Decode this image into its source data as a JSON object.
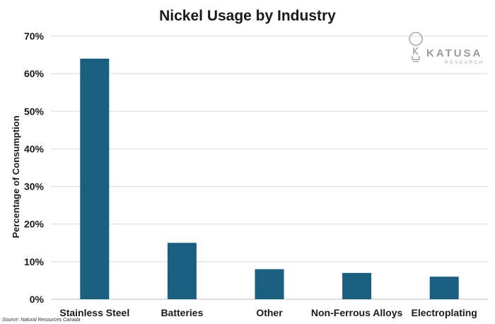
{
  "chart_data": {
    "type": "bar",
    "title": "Nickel Usage by Industry",
    "ylabel": "Percentage of Consumption",
    "xlabel": "",
    "categories": [
      "Stainless Steel",
      "Batteries",
      "Other",
      "Non-Ferrous Alloys",
      "Electroplating"
    ],
    "values": [
      64,
      15,
      8,
      7,
      6
    ],
    "ylim": [
      0,
      70
    ],
    "yticks": [
      0,
      10,
      20,
      30,
      40,
      50,
      60,
      70
    ],
    "ytick_labels": [
      "0%",
      "10%",
      "20%",
      "30%",
      "40%",
      "50%",
      "60%",
      "70%"
    ],
    "grid": true,
    "bar_color": "#1a5f80",
    "grid_color": "#d9d9d9"
  },
  "source": "Source: Natural Resources Canada",
  "logo": {
    "name": "KATUSA",
    "sub": "RESEARCH",
    "icon": "lightbulb-k-icon"
  }
}
